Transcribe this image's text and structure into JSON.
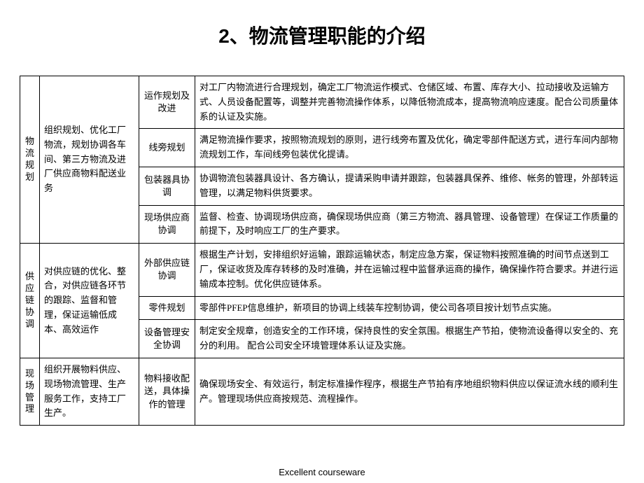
{
  "title": "2、物流管理职能的介绍",
  "footer": "Excellent courseware",
  "groups": [
    {
      "name": "物流规划",
      "desc": "组织规划、优化工厂物流，规划协调各车间、第三方物流及进厂供应商物料配送业务",
      "rows": [
        {
          "func": "运作规划及改进",
          "detail": "对工厂内物流进行合理规划，确定工厂物流运作模式、仓储区域、布置、库存大小、拉动接收及运输方式、人员设备配置等，调整并完善物流操作体系，以降低物流成本，提高物流响应速度。配合公司质量体系的认证及实施。"
        },
        {
          "func": "线旁规划",
          "detail": "满足物流操作要求，按照物流规划的原则，进行线旁布置及优化，确定零部件配送方式，进行车间内部物流规划工作，车间线旁包装优化提请。"
        },
        {
          "func": "包装器具协调",
          "detail": "协调物流包装器具设计、各方确认，提请采购申请并跟踪，包装器具保养、维修、帐务的管理，外部转运管理，以满足物料供货要求。"
        },
        {
          "func": "现场供应商协调",
          "detail": "监督、检查、协调现场供应商，确保现场供应商（第三方物流、器具管理、设备管理）在保证工作质量的前提下，及时响应工厂的生产要求。"
        }
      ]
    },
    {
      "name": "供应链协调",
      "desc": "对供应链的优化、整合，对供应链各环节的跟踪、监督和管理，保证运输低成本、高效运作",
      "rows": [
        {
          "func": "外部供应链协调",
          "detail": "根据生产计划，安排组织好运输，跟踪运输状态，制定应急方案，保证物料按照准确的时间节点送到工厂，保证收货及库存转移的及时准确，并在运输过程中监督承运商的操作，确保操作符合要求。并进行运输成本控制。优化供应链体系。"
        },
        {
          "func": "零件规划",
          "detail": "零部件PFEP信息维护，新项目的协调上线装车控制协调，使公司各项目按计划节点实施。"
        },
        {
          "func": "设备管理安全协调",
          "detail": "制定安全规章，创造安全的工作环境，保持良性的安全氛围。根据生产节拍，使物流设备得以安全的、充分的利用。 配合公司安全环境管理体系认证及实施。"
        }
      ]
    },
    {
      "name": "现场管理",
      "desc": "组织开展物料供应、现场物流管理、生产服务工作，支持工厂生产。",
      "rows": [
        {
          "func": "物料接收配送，具体操作的管理",
          "detail": "确保现场安全、有效运行，制定标准操作程序，根据生产节拍有序地组织物料供应以保证流水线的顺利生产。管理现场供应商按规范、流程操作。"
        }
      ]
    }
  ]
}
